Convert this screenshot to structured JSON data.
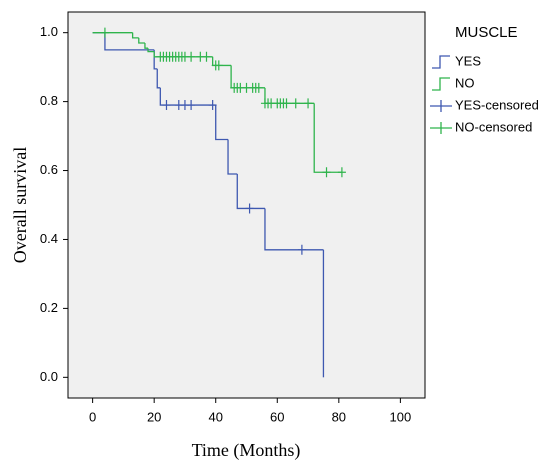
{
  "chart_data": {
    "type": "step",
    "x_label": "Time (Months)",
    "y_label": "Overall survival",
    "legend_title": "MUSCLE",
    "xlim": [
      -8,
      108
    ],
    "ylim": [
      -0.06,
      1.06
    ],
    "xticks": [
      0,
      20,
      40,
      60,
      80,
      100
    ],
    "yticks": [
      {
        "value": 0,
        "label": "0.0"
      },
      0.2,
      0.4,
      0.6,
      0.8,
      {
        "value": 1,
        "label": "1.0"
      }
    ],
    "legend": "right",
    "series": [
      {
        "name": "YES",
        "color": "#3e58b0",
        "marker": "line",
        "x": [
          0,
          4,
          20,
          21,
          22,
          40,
          44,
          47,
          56,
          75
        ],
        "values": [
          1.0,
          0.95,
          0.895,
          0.84,
          0.79,
          0.69,
          0.59,
          0.49,
          0.37,
          0.0
        ]
      },
      {
        "name": "NO",
        "color": "#2fb44c",
        "marker": "line",
        "x": [
          0,
          13,
          15,
          17,
          18,
          20,
          39,
          45,
          56,
          72
        ],
        "values": [
          1.0,
          0.985,
          0.97,
          0.955,
          0.945,
          0.93,
          0.905,
          0.84,
          0.795,
          0.595
        ]
      },
      {
        "name": "YES-censored",
        "color": "#3e58b0",
        "marker": "+",
        "x": [
          24,
          28,
          30,
          32,
          39,
          51,
          68
        ],
        "values": [
          0.79,
          0.79,
          0.79,
          0.79,
          0.79,
          0.49,
          0.37
        ]
      },
      {
        "name": "NO-censored",
        "color": "#2fb44c",
        "marker": "+",
        "x": [
          4,
          22,
          23,
          24,
          25,
          26,
          27,
          28,
          29,
          30,
          32,
          35,
          37,
          40,
          41,
          46,
          47,
          48,
          50,
          52,
          53,
          54,
          56,
          57,
          58,
          60,
          61,
          62,
          63,
          66,
          70,
          76,
          81
        ],
        "values": [
          1.0,
          0.93,
          0.93,
          0.93,
          0.93,
          0.93,
          0.93,
          0.93,
          0.93,
          0.93,
          0.93,
          0.93,
          0.93,
          0.905,
          0.905,
          0.84,
          0.84,
          0.84,
          0.84,
          0.84,
          0.84,
          0.84,
          0.795,
          0.795,
          0.795,
          0.795,
          0.795,
          0.795,
          0.795,
          0.795,
          0.795,
          0.595,
          0.595
        ]
      }
    ]
  }
}
